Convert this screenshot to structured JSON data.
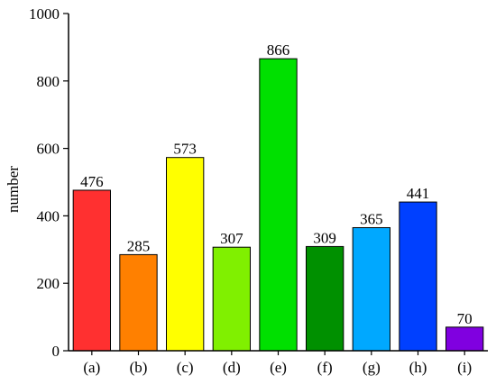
{
  "chart_data": {
    "type": "bar",
    "title": "",
    "xlabel": "",
    "ylabel": "number",
    "ylim": [
      0,
      1000
    ],
    "yticks": [
      0,
      200,
      400,
      600,
      800,
      1000
    ],
    "grid": false,
    "categories": [
      "(a)",
      "(b)",
      "(c)",
      "(d)",
      "(e)",
      "(f)",
      "(g)",
      "(h)",
      "(i)"
    ],
    "values": [
      476,
      285,
      573,
      307,
      866,
      309,
      365,
      441,
      70
    ],
    "value_labels": [
      "476",
      "285",
      "573",
      "307",
      "866",
      "309",
      "365",
      "441",
      "70"
    ],
    "colors": [
      "#ff3030",
      "#ff8000",
      "#ffff00",
      "#80f000",
      "#00e000",
      "#009000",
      "#00a8ff",
      "#0040ff",
      "#8000e0"
    ]
  }
}
